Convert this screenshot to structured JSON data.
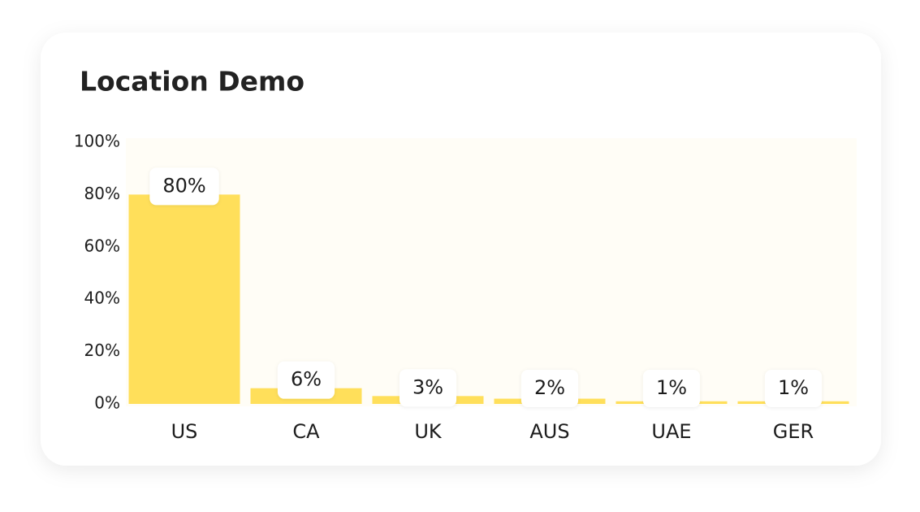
{
  "chart_data": {
    "type": "bar",
    "title": "Location Demo",
    "categories": [
      "US",
      "CA",
      "UK",
      "AUS",
      "UAE",
      "GER"
    ],
    "values": [
      80,
      6,
      3,
      2,
      1,
      1
    ],
    "value_labels": [
      "80%",
      "6%",
      "3%",
      "2%",
      "1%",
      "1%"
    ],
    "color": "#ffdf5a",
    "ylim": [
      0,
      100
    ],
    "yticks": [
      {
        "value": 0,
        "label": "0%"
      },
      {
        "value": 20,
        "label": "20%"
      },
      {
        "value": 40,
        "label": "40%"
      },
      {
        "value": 60,
        "label": "60%"
      },
      {
        "value": 80,
        "label": "80%"
      },
      {
        "value": 100,
        "label": "100%"
      }
    ]
  }
}
